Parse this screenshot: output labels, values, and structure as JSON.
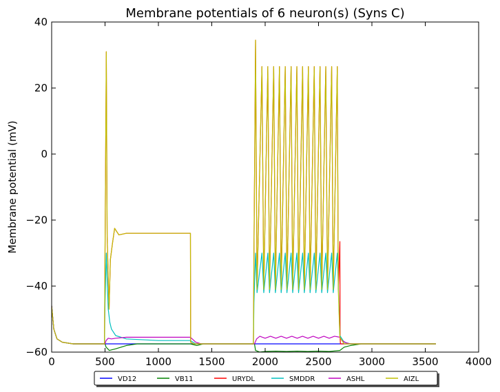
{
  "chart_data": {
    "type": "line",
    "title": "Membrane potentials of 6 neuron(s) (Syns C)",
    "xlabel": "",
    "ylabel": "Membrane potential (mV)",
    "xlim": [
      0,
      4000
    ],
    "ylim": [
      -60,
      40
    ],
    "xticks": [
      0,
      500,
      1000,
      1500,
      2000,
      2500,
      3000,
      3500,
      4000
    ],
    "yticks": [
      -60,
      -40,
      -20,
      0,
      20,
      40
    ],
    "xtick_labels": [
      "0",
      "500",
      "1000",
      "1500",
      "2000",
      "2500",
      "3000",
      "3500",
      "4000"
    ],
    "ytick_labels": [
      "−60",
      "−40",
      "−20",
      "0",
      "20",
      "40"
    ],
    "grid": false,
    "legend_position": "below-center",
    "series": [
      {
        "name": "VD12",
        "color": "#0000ff",
        "x": [
          0,
          20,
          50,
          100,
          200,
          500,
          3600
        ],
        "y": [
          -46,
          -53,
          -56,
          -57,
          -57.5,
          -57.5,
          -57.5
        ]
      },
      {
        "name": "VB11",
        "color": "#008000",
        "x": [
          0,
          20,
          50,
          100,
          200,
          500,
          510,
          540,
          600,
          700,
          800,
          1000,
          1300,
          1360,
          1420,
          1900,
          1910,
          1950,
          2000,
          2100,
          2200,
          2300,
          2400,
          2500,
          2600,
          2700,
          2740,
          2800,
          2900,
          3000,
          3600
        ],
        "y": [
          -46,
          -53,
          -56,
          -57,
          -57.5,
          -57.5,
          -58.5,
          -59.5,
          -59,
          -58,
          -57.5,
          -57.5,
          -57.5,
          -58,
          -57.5,
          -57.5,
          -59.5,
          -60,
          -59.8,
          -59.7,
          -59.8,
          -59.7,
          -59.8,
          -59.7,
          -59.8,
          -59.5,
          -58.5,
          -58,
          -57.5,
          -57.5,
          -57.5
        ]
      },
      {
        "name": "URYDL",
        "color": "#ff0000",
        "x": [
          0,
          20,
          50,
          100,
          200,
          495,
          500,
          512,
          520,
          538,
          550,
          570,
          590,
          600,
          630,
          700,
          1000,
          1300,
          1302,
          1330,
          1400,
          1890,
          1895,
          1910,
          1924,
          1970,
          1987,
          2025,
          2041,
          2080,
          2096,
          2134,
          2150,
          2188,
          2204,
          2243,
          2258,
          2297,
          2313,
          2351,
          2367,
          2405,
          2421,
          2460,
          2475,
          2514,
          2530,
          2568,
          2584,
          2623,
          2638,
          2676,
          2685,
          2700,
          2702,
          2705,
          2740,
          2800,
          3000,
          3600
        ],
        "y": [
          -46,
          -53,
          -56,
          -57,
          -57.5,
          -57.5,
          -29.5,
          31,
          -25,
          -47,
          -32,
          -27,
          -22.5,
          -23,
          -24.5,
          -24,
          -24,
          -24,
          -57,
          -57.5,
          -57.5,
          -57.5,
          -30,
          34.5,
          -41,
          26.5,
          -41,
          26.5,
          -41,
          26.5,
          -41,
          26.5,
          -41,
          26.5,
          -41,
          26.5,
          -41,
          26.5,
          -41,
          26.5,
          -41,
          26.5,
          -41,
          26.5,
          -41,
          26.5,
          -41,
          26.5,
          -41,
          26.5,
          -41,
          26.5,
          -41,
          -26.5,
          -55.5,
          -57.5,
          -57.5,
          -57.5,
          -57.5,
          -57.5
        ]
      },
      {
        "name": "SMDDR",
        "color": "#00bfbf",
        "x": [
          0,
          20,
          50,
          100,
          200,
          495,
          500,
          512,
          520,
          530,
          545,
          560,
          600,
          700,
          1000,
          1300,
          1350,
          1400,
          1890,
          1895,
          1910,
          1924,
          1970,
          1987,
          2025,
          2041,
          2080,
          2096,
          2134,
          2150,
          2188,
          2204,
          2243,
          2258,
          2297,
          2313,
          2351,
          2367,
          2405,
          2421,
          2460,
          2475,
          2514,
          2530,
          2568,
          2584,
          2623,
          2638,
          2676,
          2700,
          2740,
          2800,
          3000,
          3600
        ],
        "y": [
          -46,
          -53,
          -56,
          -57,
          -57.5,
          -57.5,
          -45,
          -30,
          -38,
          -47,
          -51,
          -53,
          -55,
          -56,
          -56.5,
          -56.5,
          -57.5,
          -57.5,
          -57.5,
          -45,
          -30,
          -42,
          -30,
          -42,
          -30,
          -42,
          -30,
          -42,
          -30,
          -42,
          -30,
          -42,
          -30,
          -42,
          -30,
          -42,
          -30,
          -42,
          -30,
          -42,
          -30,
          -42,
          -30,
          -42,
          -30,
          -42,
          -30,
          -42,
          -30,
          -55,
          -57,
          -57.5,
          -57.5,
          -57.5
        ]
      },
      {
        "name": "ASHL",
        "color": "#bf00bf",
        "x": [
          0,
          20,
          50,
          100,
          200,
          500,
          510,
          530,
          560,
          600,
          700,
          1000,
          1300,
          1350,
          1400,
          1900,
          1920,
          1950,
          2000,
          2050,
          2100,
          2150,
          2200,
          2250,
          2300,
          2350,
          2400,
          2450,
          2500,
          2550,
          2600,
          2650,
          2700,
          2720,
          2760,
          2800,
          3000,
          3600
        ],
        "y": [
          -46,
          -53,
          -56,
          -57,
          -57.5,
          -57.5,
          -56.5,
          -55.8,
          -56,
          -55.8,
          -55.5,
          -55.5,
          -55.5,
          -57,
          -57.5,
          -57.5,
          -56,
          -55.2,
          -55.8,
          -55.2,
          -55.8,
          -55.2,
          -55.8,
          -55.2,
          -55.8,
          -55.2,
          -55.8,
          -55.2,
          -55.8,
          -55.2,
          -55.8,
          -55.2,
          -55.5,
          -56.5,
          -57.2,
          -57.5,
          -57.5,
          -57.5
        ]
      },
      {
        "name": "AIZL",
        "color": "#bfbf00",
        "x": [
          0,
          20,
          50,
          100,
          200,
          495,
          500,
          512,
          520,
          538,
          550,
          570,
          590,
          600,
          630,
          700,
          1000,
          1300,
          1302,
          1330,
          1400,
          1890,
          1895,
          1910,
          1924,
          1970,
          1987,
          2025,
          2041,
          2080,
          2096,
          2134,
          2150,
          2188,
          2204,
          2243,
          2258,
          2297,
          2313,
          2351,
          2367,
          2405,
          2421,
          2460,
          2475,
          2514,
          2530,
          2568,
          2584,
          2623,
          2638,
          2676,
          2685,
          2700,
          2740,
          2800,
          3000,
          3600
        ],
        "y": [
          -46,
          -53,
          -56,
          -57,
          -57.5,
          -57.5,
          -29.5,
          31,
          -25,
          -47,
          -32,
          -27,
          -22.5,
          -23,
          -24.5,
          -24,
          -24,
          -24,
          -57,
          -57.5,
          -57.5,
          -57.5,
          -30,
          34.5,
          -41,
          26.5,
          -41,
          26.5,
          -41,
          26.5,
          -41,
          26.5,
          -41,
          26.5,
          -41,
          26.5,
          -41,
          26.5,
          -41,
          26.5,
          -41,
          26.5,
          -41,
          26.5,
          -41,
          26.5,
          -41,
          26.5,
          -41,
          26.5,
          -41,
          26.5,
          -41,
          -55.5,
          -57.5,
          -57.5,
          -57.5,
          -57.5
        ]
      }
    ]
  }
}
